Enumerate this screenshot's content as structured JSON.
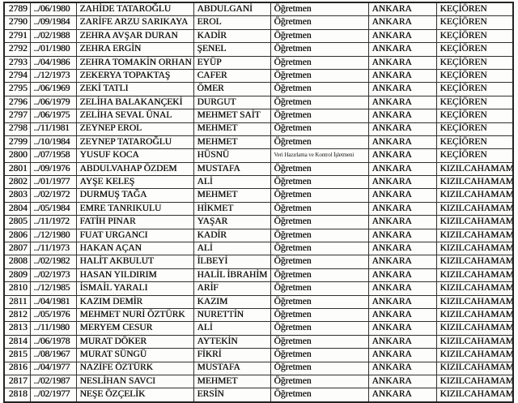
{
  "colors": {
    "paper": "#fdfdfb",
    "ink": "#121212",
    "border": "#303030"
  },
  "table": {
    "rows": [
      [
        "2789",
        "../06/1980",
        "ZAHİDE TATAROĞLU",
        "ABDULGANİ",
        "Öğretmen",
        "ANKARA",
        "KEÇİÖREN"
      ],
      [
        "2790",
        "../09/1984",
        "ZARİFE ARZU SARIKAYA",
        "EROL",
        "Öğretmen",
        "ANKARA",
        "KEÇİÖREN"
      ],
      [
        "2791",
        "../02/1988",
        "ZEHRA AVŞAR DURAN",
        "KADİR",
        "Öğretmen",
        "ANKARA",
        "KEÇİÖREN"
      ],
      [
        "2792",
        "../01/1980",
        "ZEHRA ERGİN",
        "ŞENEL",
        "Öğretmen",
        "ANKARA",
        "KEÇİÖREN"
      ],
      [
        "2793",
        "../04/1986",
        "ZEHRA TOMAKİN ORHAN",
        "EYÜP",
        "Öğretmen",
        "ANKARA",
        "KEÇİÖREN"
      ],
      [
        "2794",
        "../12/1973",
        "ZEKERYA TOPAKTAŞ",
        "CAFER",
        "Öğretmen",
        "ANKARA",
        "KEÇİÖREN"
      ],
      [
        "2795",
        "../06/1969",
        "ZEKİ TATLI",
        "ÖMER",
        "Öğretmen",
        "ANKARA",
        "KEÇİÖREN"
      ],
      [
        "2796",
        "../06/1979",
        "ZELİHA BALAKANÇEKİ",
        "DURGUT",
        "Öğretmen",
        "ANKARA",
        "KEÇİÖREN"
      ],
      [
        "2797",
        "../06/1975",
        "ZELİHA SEVAL ÜNAL",
        "MEHMET SAİT",
        "Öğretmen",
        "ANKARA",
        "KEÇİÖREN"
      ],
      [
        "2798",
        "../11/1981",
        "ZEYNEP EROL",
        "MEHMET",
        "Öğretmen",
        "ANKARA",
        "KEÇİÖREN"
      ],
      [
        "2799",
        "../10/1984",
        "ZEYNEP TATAROĞLU",
        "MEHMET",
        "Öğretmen",
        "ANKARA",
        "KEÇİÖREN"
      ],
      [
        "2800",
        "../07/1958",
        "YUSUF KOCA",
        "HÜSNÜ",
        "Veri Hazırlama ve Kontrol İşletmeni",
        "ANKARA",
        "KEÇİÖREN"
      ],
      [
        "2801",
        "../09/1976",
        "ABDULVAHAP ÖZDEM",
        "MUSTAFA",
        "Öğretmen",
        "ANKARA",
        "KIZILCAHAMAM"
      ],
      [
        "2802",
        "../01/1977",
        "AYŞE KELEŞ",
        "ALİ",
        "Öğretmen",
        "ANKARA",
        "KIZILCAHAMAM"
      ],
      [
        "2803",
        "../02/1972",
        "DURMUŞ TAĞA",
        "MEHMET",
        "Öğretmen",
        "ANKARA",
        "KIZILCAHAMAM"
      ],
      [
        "2804",
        "../05/1984",
        "EMRE TANRIKULU",
        "HİKMET",
        "Öğretmen",
        "ANKARA",
        "KIZILCAHAMAM"
      ],
      [
        "2805",
        "../11/1972",
        "FATİH PINAR",
        "YAŞAR",
        "Öğretmen",
        "ANKARA",
        "KIZILCAHAMAM"
      ],
      [
        "2806",
        "../12/1980",
        "FUAT URGANCI",
        "KADİR",
        "Öğretmen",
        "ANKARA",
        "KIZILCAHAMAM"
      ],
      [
        "2807",
        "../11/1973",
        "HAKAN AÇAN",
        "ALİ",
        "Öğretmen",
        "ANKARA",
        "KIZILCAHAMAM"
      ],
      [
        "2808",
        "../02/1982",
        "HALİT AKBULUT",
        "İLBEYİ",
        "Öğretmen",
        "ANKARA",
        "KIZILCAHAMAM"
      ],
      [
        "2809",
        "../02/1973",
        "HASAN YILDIRIM",
        "HALİL İBRAHİM",
        "Öğretmen",
        "ANKARA",
        "KIZILCAHAMAM"
      ],
      [
        "2810",
        "../12/1985",
        "İSMAİL YARALI",
        "ARİF",
        "Öğretmen",
        "ANKARA",
        "KIZILCAHAMAM"
      ],
      [
        "2811",
        "../04/1981",
        "KAZIM DEMİR",
        "KAZIM",
        "Öğretmen",
        "ANKARA",
        "KIZILCAHAMAM"
      ],
      [
        "2812",
        "../05/1976",
        "MEHMET NURİ ÖZTÜRK",
        "NURETTİN",
        "Öğretmen",
        "ANKARA",
        "KIZILCAHAMAM"
      ],
      [
        "2813",
        "../11/1980",
        "MERYEM CESUR",
        "ALİ",
        "Öğretmen",
        "ANKARA",
        "KIZILCAHAMAM"
      ],
      [
        "2814",
        "../06/1978",
        "MURAT DÖKER",
        "AYTEKİN",
        "Öğretmen",
        "ANKARA",
        "KIZILCAHAMAM"
      ],
      [
        "2815",
        "../08/1967",
        "MURAT SÜNGÜ",
        "FİKRİ",
        "Öğretmen",
        "ANKARA",
        "KIZILCAHAMAM"
      ],
      [
        "2816",
        "../04/1977",
        "NAZİFE ÖZTÜRK",
        "MUSTAFA",
        "Öğretmen",
        "ANKARA",
        "KIZILCAHAMAM"
      ],
      [
        "2817",
        "../02/1987",
        "NESLİHAN SAVCI",
        "MEHMET",
        "Öğretmen",
        "ANKARA",
        "KIZILCAHAMAM"
      ],
      [
        "2818",
        "../02/1977",
        "NEŞE ÖZÇELİK",
        "ERSİN",
        "Öğretmen",
        "ANKARA",
        "KIZILCAHAMAM"
      ]
    ]
  }
}
